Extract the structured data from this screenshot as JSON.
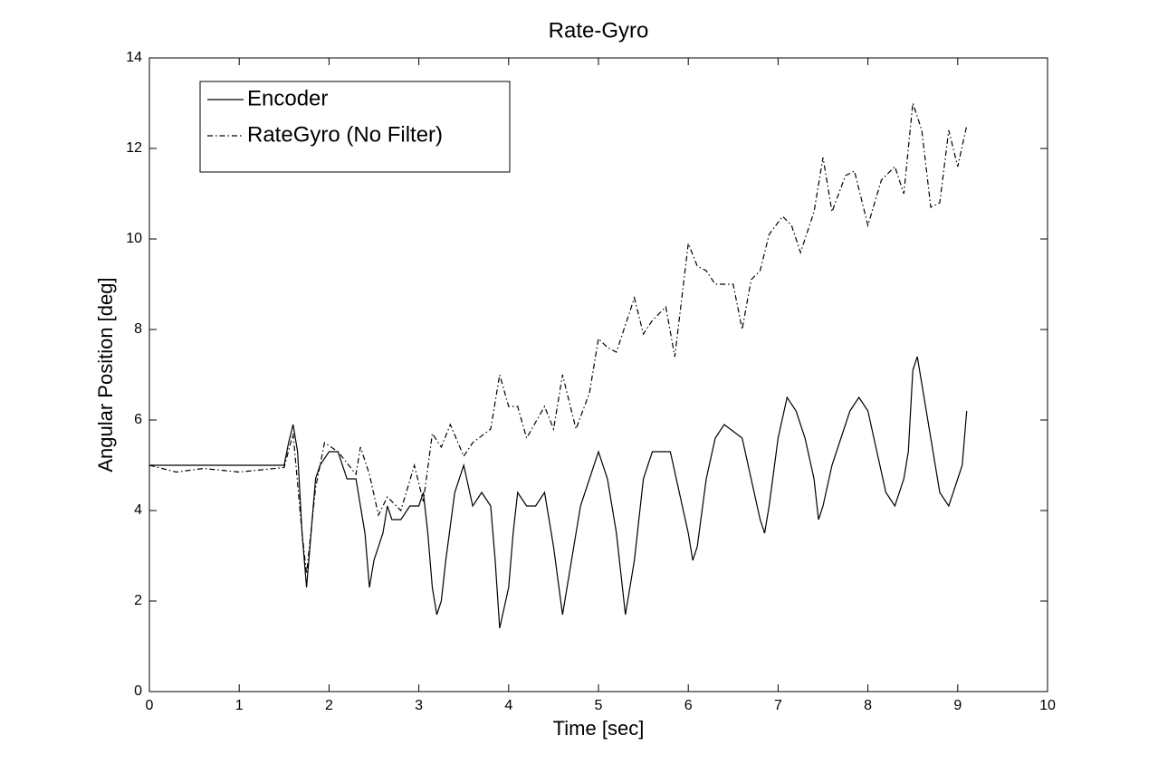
{
  "chart_data": {
    "type": "line",
    "title": "Rate-Gyro",
    "x_label": "Time [sec]",
    "y_label": "Angular Position [deg]",
    "xlim": [
      0,
      10
    ],
    "xticks": [
      0,
      1,
      2,
      3,
      4,
      5,
      6,
      7,
      8,
      9,
      10
    ],
    "ylim": [
      0,
      14
    ],
    "yticks": [
      0,
      2,
      4,
      6,
      8,
      10,
      12,
      14
    ],
    "legend": "top-left",
    "series": [
      {
        "name": "Encoder",
        "color": "#000000",
        "dash": "solid",
        "x": [
          0,
          1.5,
          1.55,
          1.6,
          1.65,
          1.7,
          1.75,
          1.8,
          1.85,
          1.9,
          2.0,
          2.1,
          2.2,
          2.3,
          2.4,
          2.45,
          2.5,
          2.6,
          2.65,
          2.7,
          2.8,
          2.9,
          3.0,
          3.05,
          3.1,
          3.15,
          3.2,
          3.25,
          3.3,
          3.4,
          3.5,
          3.6,
          3.7,
          3.8,
          3.85,
          3.9,
          4.0,
          4.05,
          4.1,
          4.2,
          4.3,
          4.4,
          4.5,
          4.6,
          4.65,
          4.7,
          4.8,
          4.9,
          5.0,
          5.1,
          5.2,
          5.3,
          5.4,
          5.5,
          5.6,
          5.8,
          5.9,
          6.0,
          6.05,
          6.1,
          6.2,
          6.3,
          6.4,
          6.6,
          6.7,
          6.8,
          6.85,
          6.9,
          7.0,
          7.1,
          7.2,
          7.3,
          7.4,
          7.45,
          7.5,
          7.6,
          7.7,
          7.8,
          7.9,
          8.0,
          8.1,
          8.2,
          8.3,
          8.4,
          8.45,
          8.5,
          8.55,
          8.6,
          8.7,
          8.8,
          8.9,
          9.0,
          9.05,
          9.1
        ],
        "values": [
          5.0,
          5.0,
          5.5,
          5.9,
          5.3,
          3.5,
          2.3,
          3.5,
          4.7,
          5.0,
          5.3,
          5.3,
          4.7,
          4.7,
          3.5,
          2.3,
          2.9,
          3.5,
          4.1,
          3.8,
          3.8,
          4.1,
          4.1,
          4.4,
          3.5,
          2.3,
          1.7,
          2.0,
          2.9,
          4.4,
          5.0,
          4.1,
          4.4,
          4.1,
          2.9,
          1.4,
          2.3,
          3.5,
          4.4,
          4.1,
          4.1,
          4.4,
          3.2,
          1.7,
          2.3,
          2.9,
          4.1,
          4.7,
          5.3,
          4.7,
          3.5,
          1.7,
          2.9,
          4.7,
          5.3,
          5.3,
          4.4,
          3.5,
          2.9,
          3.2,
          4.7,
          5.6,
          5.9,
          5.6,
          4.7,
          3.8,
          3.5,
          4.1,
          5.6,
          6.5,
          6.2,
          5.6,
          4.7,
          3.8,
          4.1,
          5.0,
          5.6,
          6.2,
          6.5,
          6.2,
          5.3,
          4.4,
          4.1,
          4.7,
          5.3,
          7.1,
          7.4,
          6.8,
          5.6,
          4.4,
          4.1,
          4.7,
          5.0,
          6.2
        ]
      },
      {
        "name": "RateGyro (No Filter)",
        "color": "#000000",
        "dash": "dashdot",
        "x": [
          0,
          0.3,
          0.6,
          1.0,
          1.5,
          1.6,
          1.7,
          1.75,
          1.85,
          1.95,
          2.1,
          2.3,
          2.35,
          2.45,
          2.55,
          2.65,
          2.8,
          2.95,
          3.05,
          3.15,
          3.25,
          3.35,
          3.5,
          3.6,
          3.8,
          3.9,
          4.0,
          4.1,
          4.2,
          4.4,
          4.5,
          4.6,
          4.75,
          4.9,
          5.0,
          5.1,
          5.2,
          5.3,
          5.4,
          5.5,
          5.6,
          5.75,
          5.85,
          6.0,
          6.1,
          6.2,
          6.3,
          6.5,
          6.6,
          6.7,
          6.8,
          6.9,
          7.05,
          7.15,
          7.25,
          7.4,
          7.5,
          7.6,
          7.75,
          7.85,
          8.0,
          8.15,
          8.3,
          8.4,
          8.5,
          8.6,
          8.7,
          8.8,
          8.9,
          9.0,
          9.1
        ],
        "values": [
          5.0,
          4.85,
          4.93,
          4.85,
          4.95,
          5.7,
          3.5,
          2.6,
          4.5,
          5.5,
          5.3,
          4.8,
          5.4,
          4.8,
          3.9,
          4.3,
          4.0,
          5.0,
          4.2,
          5.7,
          5.4,
          5.9,
          5.2,
          5.5,
          5.8,
          7.0,
          6.3,
          6.3,
          5.6,
          6.3,
          5.8,
          7.0,
          5.8,
          6.6,
          7.8,
          7.6,
          7.5,
          8.1,
          8.7,
          7.9,
          8.2,
          8.5,
          7.4,
          9.9,
          9.4,
          9.3,
          9.0,
          9.0,
          8.0,
          9.1,
          9.3,
          10.1,
          10.5,
          10.3,
          9.7,
          10.6,
          11.8,
          10.6,
          11.4,
          11.5,
          10.3,
          11.3,
          11.6,
          11.0,
          13.0,
          12.4,
          10.7,
          10.8,
          12.4,
          11.6,
          12.5
        ]
      }
    ]
  }
}
